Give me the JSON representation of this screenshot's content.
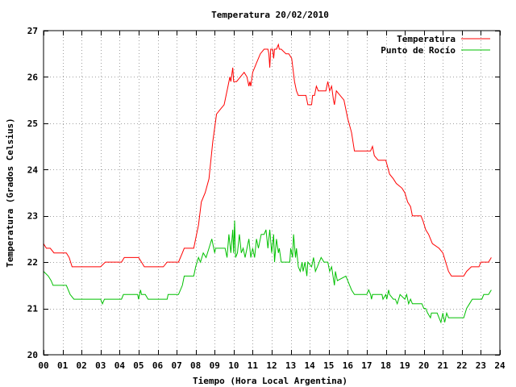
{
  "chart_data": {
    "type": "line",
    "title": "Temperatura 20/02/2010",
    "xlabel": "Tiempo (Hora Local Argentina)",
    "ylabel": "Temperatura (Grados Celsius)",
    "xlim": [
      0,
      24
    ],
    "ylim": [
      20,
      27
    ],
    "x_ticks": [
      "00",
      "01",
      "02",
      "03",
      "04",
      "05",
      "06",
      "07",
      "08",
      "09",
      "10",
      "11",
      "12",
      "13",
      "14",
      "15",
      "16",
      "17",
      "18",
      "19",
      "20",
      "21",
      "22",
      "23",
      "24"
    ],
    "y_ticks": [
      "20",
      "21",
      "22",
      "23",
      "24",
      "25",
      "26",
      "27"
    ],
    "grid": true,
    "legend_position": "top-right",
    "series": [
      {
        "name": "Temperatura",
        "color": "#ff0000",
        "points": [
          [
            0.0,
            22.4
          ],
          [
            0.15,
            22.3
          ],
          [
            0.35,
            22.3
          ],
          [
            0.55,
            22.2
          ],
          [
            1.2,
            22.2
          ],
          [
            1.35,
            22.1
          ],
          [
            1.5,
            21.9
          ],
          [
            1.8,
            21.9
          ],
          [
            3.0,
            21.9
          ],
          [
            3.25,
            22.0
          ],
          [
            4.1,
            22.0
          ],
          [
            4.25,
            22.1
          ],
          [
            5.0,
            22.1
          ],
          [
            5.15,
            22.0
          ],
          [
            5.3,
            21.9
          ],
          [
            6.3,
            21.9
          ],
          [
            6.5,
            22.0
          ],
          [
            7.1,
            22.0
          ],
          [
            7.3,
            22.2
          ],
          [
            7.4,
            22.3
          ],
          [
            7.9,
            22.3
          ],
          [
            8.05,
            22.6
          ],
          [
            8.15,
            22.8
          ],
          [
            8.3,
            23.3
          ],
          [
            8.5,
            23.5
          ],
          [
            8.7,
            23.8
          ],
          [
            8.9,
            24.6
          ],
          [
            9.1,
            25.2
          ],
          [
            9.3,
            25.3
          ],
          [
            9.5,
            25.4
          ],
          [
            9.7,
            25.8
          ],
          [
            9.8,
            26.0
          ],
          [
            9.85,
            25.9
          ],
          [
            9.95,
            26.2
          ],
          [
            10.0,
            25.9
          ],
          [
            10.15,
            25.9
          ],
          [
            10.35,
            26.0
          ],
          [
            10.55,
            26.1
          ],
          [
            10.7,
            26.0
          ],
          [
            10.8,
            25.8
          ],
          [
            10.85,
            25.9
          ],
          [
            10.9,
            25.8
          ],
          [
            11.0,
            26.1
          ],
          [
            11.1,
            26.2
          ],
          [
            11.2,
            26.3
          ],
          [
            11.4,
            26.5
          ],
          [
            11.6,
            26.6
          ],
          [
            11.8,
            26.6
          ],
          [
            11.85,
            26.5
          ],
          [
            11.9,
            26.2
          ],
          [
            11.95,
            26.6
          ],
          [
            12.05,
            26.6
          ],
          [
            12.1,
            26.4
          ],
          [
            12.15,
            26.6
          ],
          [
            12.25,
            26.6
          ],
          [
            12.35,
            26.7
          ],
          [
            12.4,
            26.6
          ],
          [
            12.5,
            26.6
          ],
          [
            12.75,
            26.5
          ],
          [
            12.9,
            26.5
          ],
          [
            13.05,
            26.4
          ],
          [
            13.2,
            25.9
          ],
          [
            13.3,
            25.7
          ],
          [
            13.4,
            25.6
          ],
          [
            13.8,
            25.6
          ],
          [
            13.9,
            25.4
          ],
          [
            14.1,
            25.4
          ],
          [
            14.15,
            25.6
          ],
          [
            14.25,
            25.6
          ],
          [
            14.35,
            25.8
          ],
          [
            14.45,
            25.7
          ],
          [
            14.85,
            25.7
          ],
          [
            14.9,
            25.8
          ],
          [
            14.95,
            25.9
          ],
          [
            15.05,
            25.7
          ],
          [
            15.15,
            25.8
          ],
          [
            15.25,
            25.5
          ],
          [
            15.3,
            25.4
          ],
          [
            15.4,
            25.7
          ],
          [
            15.6,
            25.6
          ],
          [
            15.8,
            25.5
          ],
          [
            16.0,
            25.1
          ],
          [
            16.2,
            24.8
          ],
          [
            16.35,
            24.4
          ],
          [
            16.7,
            24.4
          ],
          [
            17.1,
            24.4
          ],
          [
            17.2,
            24.4
          ],
          [
            17.3,
            24.5
          ],
          [
            17.4,
            24.3
          ],
          [
            17.6,
            24.2
          ],
          [
            18.0,
            24.2
          ],
          [
            18.2,
            23.9
          ],
          [
            18.4,
            23.8
          ],
          [
            18.55,
            23.7
          ],
          [
            18.85,
            23.6
          ],
          [
            19.0,
            23.5
          ],
          [
            19.15,
            23.3
          ],
          [
            19.3,
            23.2
          ],
          [
            19.4,
            23.0
          ],
          [
            19.85,
            23.0
          ],
          [
            19.95,
            22.9
          ],
          [
            20.1,
            22.7
          ],
          [
            20.25,
            22.6
          ],
          [
            20.45,
            22.4
          ],
          [
            20.8,
            22.3
          ],
          [
            21.0,
            22.2
          ],
          [
            21.3,
            21.8
          ],
          [
            21.45,
            21.7
          ],
          [
            22.1,
            21.7
          ],
          [
            22.25,
            21.8
          ],
          [
            22.5,
            21.9
          ],
          [
            22.9,
            21.9
          ],
          [
            23.0,
            22.0
          ],
          [
            23.4,
            22.0
          ],
          [
            23.55,
            22.1
          ]
        ]
      },
      {
        "name": "Punto de Rocío",
        "color": "#00c000",
        "points": [
          [
            0.0,
            21.8
          ],
          [
            0.25,
            21.7
          ],
          [
            0.4,
            21.6
          ],
          [
            0.5,
            21.5
          ],
          [
            1.2,
            21.5
          ],
          [
            1.4,
            21.3
          ],
          [
            1.6,
            21.2
          ],
          [
            3.0,
            21.2
          ],
          [
            3.1,
            21.1
          ],
          [
            3.2,
            21.2
          ],
          [
            3.6,
            21.2
          ],
          [
            4.1,
            21.2
          ],
          [
            4.2,
            21.3
          ],
          [
            4.95,
            21.3
          ],
          [
            5.0,
            21.2
          ],
          [
            5.1,
            21.4
          ],
          [
            5.15,
            21.3
          ],
          [
            5.35,
            21.3
          ],
          [
            5.5,
            21.2
          ],
          [
            6.5,
            21.2
          ],
          [
            6.55,
            21.3
          ],
          [
            7.1,
            21.3
          ],
          [
            7.3,
            21.5
          ],
          [
            7.4,
            21.7
          ],
          [
            7.9,
            21.7
          ],
          [
            8.0,
            21.9
          ],
          [
            8.15,
            22.1
          ],
          [
            8.25,
            22.0
          ],
          [
            8.4,
            22.2
          ],
          [
            8.55,
            22.1
          ],
          [
            8.7,
            22.3
          ],
          [
            8.85,
            22.5
          ],
          [
            9.0,
            22.2
          ],
          [
            9.05,
            22.3
          ],
          [
            9.55,
            22.3
          ],
          [
            9.65,
            22.1
          ],
          [
            9.75,
            22.6
          ],
          [
            9.85,
            22.2
          ],
          [
            9.95,
            22.7
          ],
          [
            10.0,
            22.2
          ],
          [
            10.05,
            22.9
          ],
          [
            10.1,
            22.1
          ],
          [
            10.2,
            22.2
          ],
          [
            10.3,
            22.6
          ],
          [
            10.4,
            22.2
          ],
          [
            10.5,
            22.3
          ],
          [
            10.6,
            22.1
          ],
          [
            10.8,
            22.5
          ],
          [
            10.9,
            22.1
          ],
          [
            11.0,
            22.3
          ],
          [
            11.1,
            22.1
          ],
          [
            11.2,
            22.5
          ],
          [
            11.3,
            22.3
          ],
          [
            11.45,
            22.6
          ],
          [
            11.6,
            22.6
          ],
          [
            11.7,
            22.7
          ],
          [
            11.8,
            22.3
          ],
          [
            11.9,
            22.7
          ],
          [
            12.0,
            22.2
          ],
          [
            12.1,
            22.6
          ],
          [
            12.15,
            22.0
          ],
          [
            12.25,
            22.5
          ],
          [
            12.35,
            22.2
          ],
          [
            12.4,
            22.3
          ],
          [
            12.5,
            22.0
          ],
          [
            12.7,
            22.0
          ],
          [
            12.95,
            22.0
          ],
          [
            13.0,
            22.3
          ],
          [
            13.1,
            22.1
          ],
          [
            13.15,
            22.6
          ],
          [
            13.25,
            22.1
          ],
          [
            13.3,
            22.3
          ],
          [
            13.4,
            21.9
          ],
          [
            13.5,
            21.8
          ],
          [
            13.6,
            22.0
          ],
          [
            13.65,
            21.8
          ],
          [
            13.75,
            22.0
          ],
          [
            13.85,
            21.7
          ],
          [
            13.9,
            22.0
          ],
          [
            14.1,
            21.9
          ],
          [
            14.2,
            22.1
          ],
          [
            14.3,
            21.8
          ],
          [
            14.4,
            21.9
          ],
          [
            14.5,
            22.0
          ],
          [
            14.6,
            22.1
          ],
          [
            14.75,
            22.0
          ],
          [
            14.95,
            22.0
          ],
          [
            15.05,
            21.8
          ],
          [
            15.15,
            21.9
          ],
          [
            15.3,
            21.5
          ],
          [
            15.35,
            21.8
          ],
          [
            15.45,
            21.6
          ],
          [
            15.9,
            21.7
          ],
          [
            16.0,
            21.6
          ],
          [
            16.1,
            21.5
          ],
          [
            16.2,
            21.4
          ],
          [
            16.35,
            21.3
          ],
          [
            16.8,
            21.3
          ],
          [
            17.0,
            21.3
          ],
          [
            17.1,
            21.4
          ],
          [
            17.2,
            21.3
          ],
          [
            17.25,
            21.2
          ],
          [
            17.3,
            21.3
          ],
          [
            17.8,
            21.3
          ],
          [
            17.85,
            21.2
          ],
          [
            18.0,
            21.3
          ],
          [
            18.05,
            21.2
          ],
          [
            18.1,
            21.3
          ],
          [
            18.15,
            21.4
          ],
          [
            18.2,
            21.3
          ],
          [
            18.4,
            21.2
          ],
          [
            18.5,
            21.2
          ],
          [
            18.6,
            21.1
          ],
          [
            18.75,
            21.3
          ],
          [
            19.0,
            21.2
          ],
          [
            19.1,
            21.3
          ],
          [
            19.2,
            21.1
          ],
          [
            19.3,
            21.2
          ],
          [
            19.4,
            21.1
          ],
          [
            19.9,
            21.1
          ],
          [
            20.0,
            21.0
          ],
          [
            20.1,
            21.0
          ],
          [
            20.2,
            20.9
          ],
          [
            20.35,
            20.8
          ],
          [
            20.4,
            20.9
          ],
          [
            20.7,
            20.9
          ],
          [
            20.8,
            20.8
          ],
          [
            20.9,
            20.7
          ],
          [
            21.0,
            20.9
          ],
          [
            21.05,
            20.8
          ],
          [
            21.1,
            20.7
          ],
          [
            21.2,
            20.9
          ],
          [
            21.3,
            20.8
          ],
          [
            22.1,
            20.8
          ],
          [
            22.25,
            21.0
          ],
          [
            22.4,
            21.1
          ],
          [
            22.55,
            21.2
          ],
          [
            23.05,
            21.2
          ],
          [
            23.15,
            21.3
          ],
          [
            23.4,
            21.3
          ],
          [
            23.55,
            21.4
          ]
        ]
      }
    ]
  }
}
